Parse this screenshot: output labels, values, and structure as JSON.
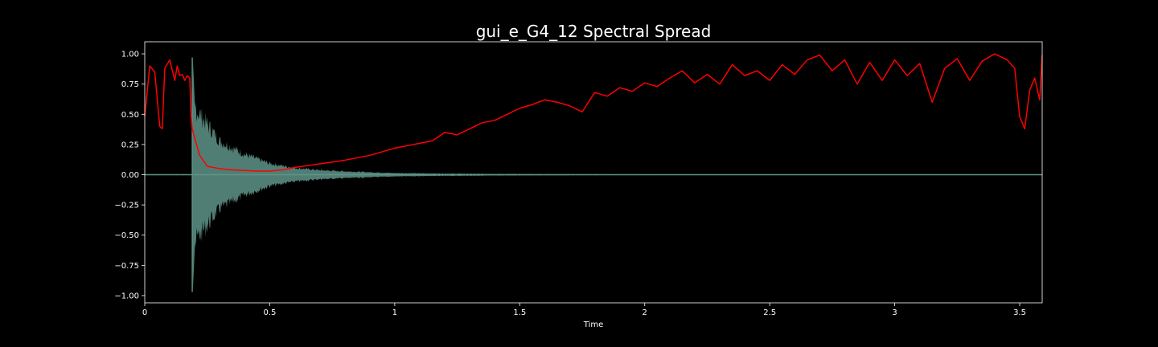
{
  "chart_data": {
    "type": "line",
    "title": "gui_e_G4_12 Spectral Spread",
    "xlabel": "Time",
    "ylabel": "",
    "xlim": [
      0,
      3.59
    ],
    "ylim": [
      -1.06,
      1.1
    ],
    "grid": false,
    "x_ticks": [
      {
        "value": 0,
        "label": "0"
      },
      {
        "value": 0.5,
        "label": "0.5"
      },
      {
        "value": 1,
        "label": "1"
      },
      {
        "value": 1.5,
        "label": "1.5"
      },
      {
        "value": 2,
        "label": "2"
      },
      {
        "value": 2.5,
        "label": "2.5"
      },
      {
        "value": 3,
        "label": "3"
      },
      {
        "value": 3.5,
        "label": "3.5"
      }
    ],
    "y_ticks": [
      {
        "value": 1.0,
        "label": "1.00"
      },
      {
        "value": 0.75,
        "label": "0.75"
      },
      {
        "value": 0.5,
        "label": "0.50"
      },
      {
        "value": 0.25,
        "label": "0.25"
      },
      {
        "value": 0.0,
        "label": "0.00"
      },
      {
        "value": -0.25,
        "label": "−0.25"
      },
      {
        "value": -0.5,
        "label": "−0.50"
      },
      {
        "value": -0.75,
        "label": "−0.75"
      },
      {
        "value": -1.0,
        "label": "−1.00"
      }
    ],
    "series": [
      {
        "kind": "waveform",
        "color": "#5f9488",
        "onset": 0.19,
        "peak": 0.97,
        "decay_envelope": {
          "t": [
            0.19,
            0.2,
            0.25,
            0.3,
            0.4,
            0.5,
            0.6,
            0.7,
            0.8,
            1.0,
            1.2,
            1.5,
            1.8,
            2.2,
            3.59
          ],
          "amp": [
            0.97,
            0.6,
            0.45,
            0.3,
            0.18,
            0.1,
            0.06,
            0.04,
            0.03,
            0.015,
            0.01,
            0.006,
            0.004,
            0.003,
            0.002
          ]
        }
      },
      {
        "kind": "spectral-spread",
        "color": "#ff0000",
        "x": [
          0.0,
          0.02,
          0.04,
          0.06,
          0.07,
          0.08,
          0.1,
          0.12,
          0.13,
          0.14,
          0.15,
          0.16,
          0.17,
          0.18,
          0.185,
          0.19,
          0.2,
          0.22,
          0.25,
          0.3,
          0.35,
          0.4,
          0.45,
          0.5,
          0.55,
          0.6,
          0.7,
          0.8,
          0.9,
          1.0,
          1.1,
          1.15,
          1.2,
          1.25,
          1.3,
          1.35,
          1.4,
          1.45,
          1.5,
          1.55,
          1.6,
          1.65,
          1.7,
          1.75,
          1.8,
          1.85,
          1.9,
          1.95,
          2.0,
          2.05,
          2.1,
          2.15,
          2.2,
          2.25,
          2.3,
          2.35,
          2.4,
          2.45,
          2.5,
          2.55,
          2.6,
          2.65,
          2.7,
          2.75,
          2.8,
          2.85,
          2.9,
          2.95,
          3.0,
          3.05,
          3.1,
          3.15,
          3.2,
          3.25,
          3.3,
          3.35,
          3.4,
          3.45,
          3.48,
          3.5,
          3.52,
          3.54,
          3.56,
          3.58,
          3.59
        ],
        "y": [
          0.48,
          0.9,
          0.85,
          0.4,
          0.38,
          0.88,
          0.95,
          0.78,
          0.9,
          0.82,
          0.83,
          0.78,
          0.82,
          0.8,
          0.5,
          0.38,
          0.3,
          0.16,
          0.07,
          0.05,
          0.04,
          0.035,
          0.03,
          0.03,
          0.04,
          0.06,
          0.09,
          0.12,
          0.16,
          0.22,
          0.26,
          0.28,
          0.35,
          0.33,
          0.38,
          0.43,
          0.45,
          0.5,
          0.55,
          0.58,
          0.62,
          0.6,
          0.57,
          0.52,
          0.68,
          0.65,
          0.72,
          0.69,
          0.76,
          0.73,
          0.8,
          0.86,
          0.76,
          0.83,
          0.75,
          0.91,
          0.82,
          0.86,
          0.78,
          0.91,
          0.83,
          0.95,
          0.99,
          0.86,
          0.95,
          0.75,
          0.93,
          0.78,
          0.95,
          0.82,
          0.92,
          0.6,
          0.88,
          0.96,
          0.78,
          0.94,
          1.0,
          0.95,
          0.88,
          0.48,
          0.38,
          0.7,
          0.8,
          0.62,
          0.99
        ]
      }
    ]
  }
}
